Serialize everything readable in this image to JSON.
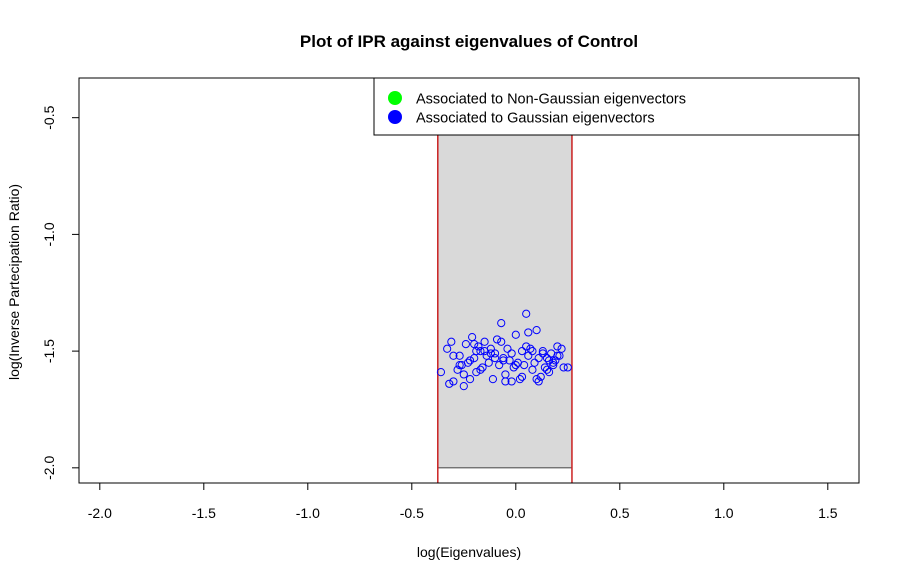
{
  "chart_data": {
    "type": "scatter",
    "title": "Plot of IPR against eigenvalues of  Control",
    "xlabel": "log(Eigenvalues)",
    "ylabel": "log(Inverse Partecipation Ratio)",
    "xlim": [
      -2.1,
      1.65
    ],
    "ylim": [
      -2.065,
      -0.33
    ],
    "xticks": [
      -2.0,
      -1.5,
      -1.0,
      -0.5,
      0.0,
      0.5,
      1.0,
      1.5
    ],
    "xtick_labels": [
      "-2.0",
      "-1.5",
      "-1.0",
      "-0.5",
      "0.0",
      "0.5",
      "1.0",
      "1.5"
    ],
    "yticks": [
      -2.0,
      -1.5,
      -1.0,
      -0.5
    ],
    "ytick_labels": [
      "-2.0",
      "-1.5",
      "-1.0",
      "-0.5"
    ],
    "gaussian_region": {
      "x_min": -0.375,
      "x_max": 0.27,
      "y_bottom": -2.0,
      "fill": "#d9d9d9",
      "border_color": "#cc2222"
    },
    "legend": {
      "position": "top-right",
      "entries": [
        {
          "label": "Associated to Non-Gaussian eigenvectors",
          "color": "#00ff00"
        },
        {
          "label": "Associated to Gaussian eigenvectors",
          "color": "#0000ff"
        }
      ]
    },
    "series": [
      {
        "name": "Associated to Gaussian eigenvectors",
        "color": "#0000ff",
        "marker": "open-circle",
        "x": [
          -0.36,
          -0.33,
          -0.32,
          -0.31,
          -0.3,
          -0.28,
          -0.27,
          -0.26,
          -0.25,
          -0.24,
          -0.23,
          -0.22,
          -0.21,
          -0.2,
          -0.19,
          -0.18,
          -0.17,
          -0.16,
          -0.15,
          -0.14,
          -0.13,
          -0.12,
          -0.11,
          -0.1,
          -0.09,
          -0.08,
          -0.07,
          -0.06,
          -0.05,
          -0.04,
          -0.03,
          -0.02,
          -0.01,
          0.0,
          0.01,
          0.02,
          0.03,
          0.04,
          0.05,
          0.06,
          0.07,
          0.08,
          0.09,
          0.1,
          0.11,
          0.12,
          0.13,
          0.14,
          0.15,
          0.16,
          0.17,
          0.18,
          0.19,
          0.2,
          0.21,
          0.22,
          0.23,
          0.25,
          -0.3,
          -0.25,
          -0.2,
          -0.15,
          -0.1,
          -0.05,
          0.0,
          0.05,
          0.1,
          0.15,
          0.2,
          -0.22,
          -0.12,
          -0.02,
          0.08,
          0.18,
          -0.17,
          -0.07,
          0.03,
          0.13,
          -0.27,
          0.06,
          -0.06,
          0.11,
          -0.19,
          0.16
        ],
        "y": [
          -1.59,
          -1.49,
          -1.64,
          -1.46,
          -1.63,
          -1.58,
          -1.52,
          -1.56,
          -1.65,
          -1.47,
          -1.55,
          -1.62,
          -1.44,
          -1.53,
          -1.59,
          -1.48,
          -1.5,
          -1.57,
          -1.46,
          -1.52,
          -1.55,
          -1.49,
          -1.62,
          -1.51,
          -1.45,
          -1.56,
          -1.38,
          -1.53,
          -1.6,
          -1.49,
          -1.54,
          -1.51,
          -1.57,
          -1.43,
          -1.55,
          -1.62,
          -1.5,
          -1.56,
          -1.34,
          -1.52,
          -1.49,
          -1.58,
          -1.55,
          -1.41,
          -1.53,
          -1.61,
          -1.5,
          -1.57,
          -1.53,
          -1.59,
          -1.51,
          -1.56,
          -1.54,
          -1.48,
          -1.52,
          -1.49,
          -1.57,
          -1.57,
          -1.52,
          -1.6,
          -1.47,
          -1.5,
          -1.53,
          -1.63,
          -1.56,
          -1.48,
          -1.62,
          -1.58,
          -1.52,
          -1.54,
          -1.51,
          -1.63,
          -1.5,
          -1.55,
          -1.58,
          -1.46,
          -1.61,
          -1.51,
          -1.56,
          -1.42,
          -1.54,
          -1.63,
          -1.5,
          -1.54
        ]
      }
    ]
  }
}
